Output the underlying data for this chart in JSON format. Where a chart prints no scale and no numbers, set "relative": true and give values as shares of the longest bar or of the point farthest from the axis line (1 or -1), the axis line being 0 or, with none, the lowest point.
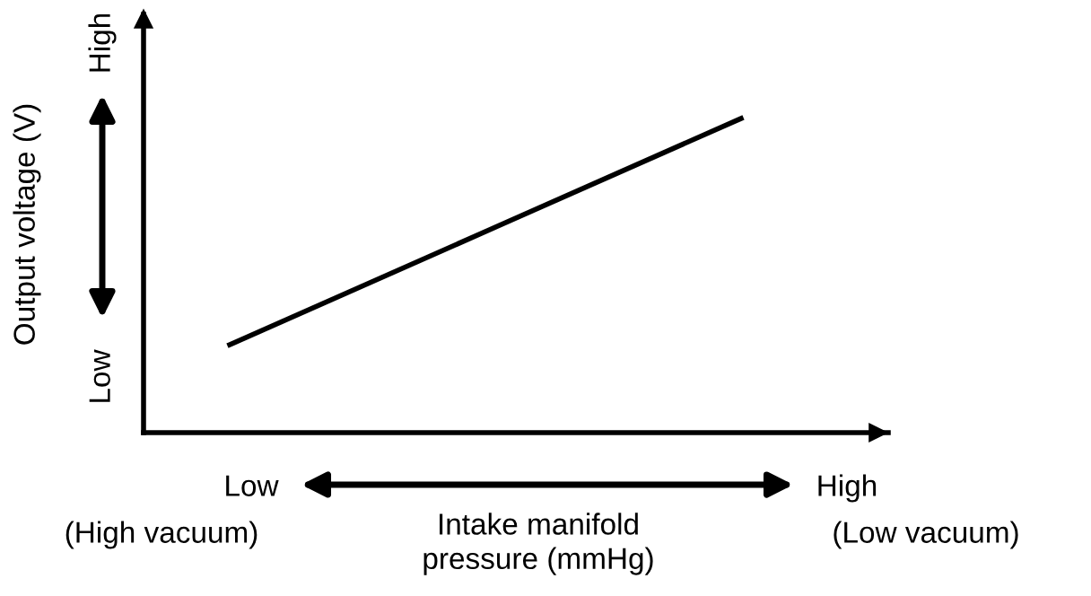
{
  "chart_data": {
    "type": "line",
    "relative": true,
    "categories": [
      null,
      null
    ],
    "values": [
      0.28,
      1
    ],
    "color": "#000000",
    "xlabel": "Intake manifold\npressure (mmHg)",
    "ylabel": "Output voltage (V)",
    "annotations": [
      "High",
      "Low",
      "Low",
      "High",
      "(High vacuum)",
      "(Low vacuum)"
    ],
    "legend": false
  }
}
